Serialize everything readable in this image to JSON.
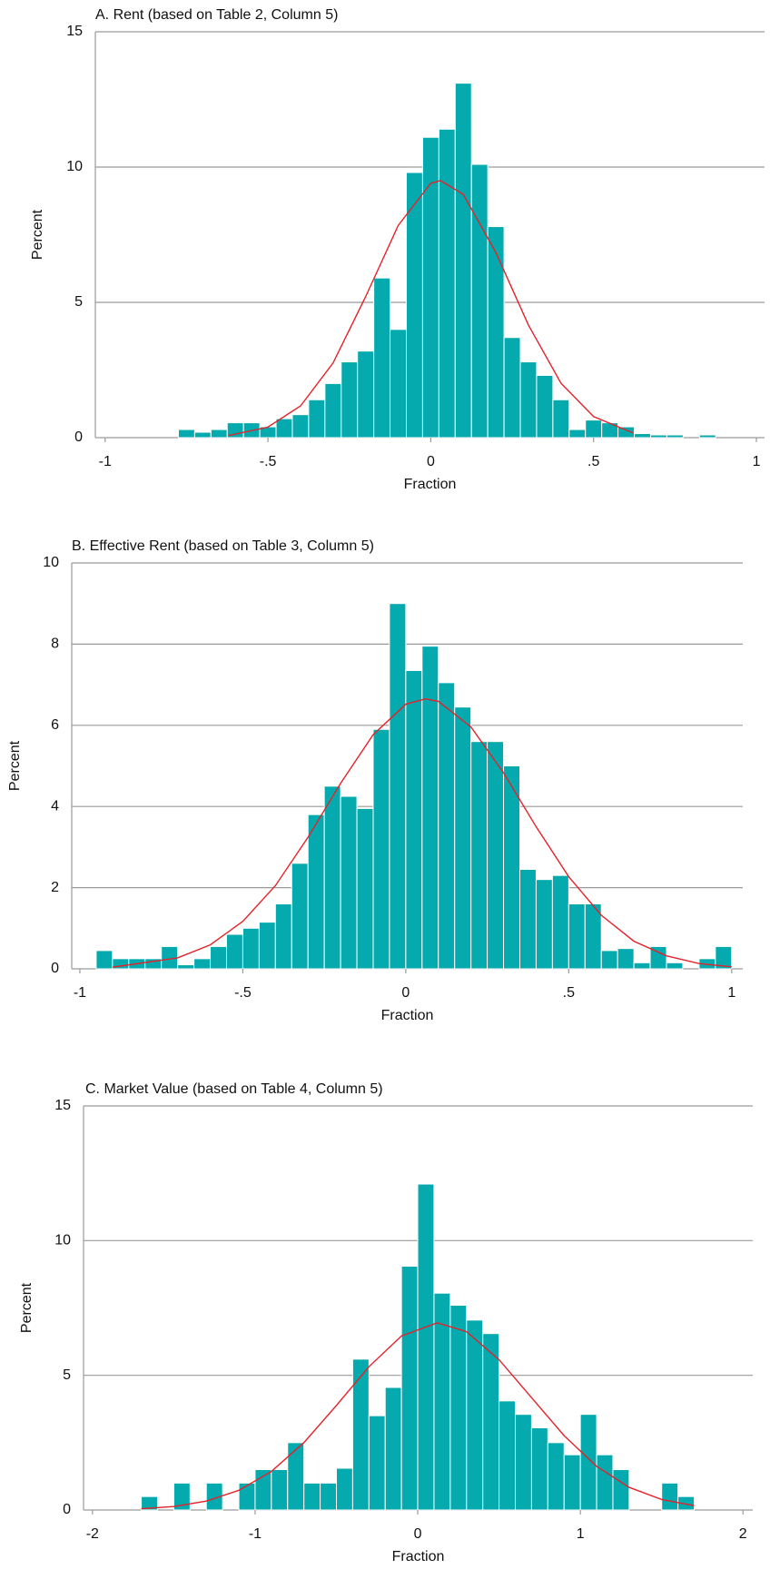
{
  "chart_data": [
    {
      "type": "histogram",
      "title": "A. Rent (based on Table 2, Column 5)",
      "x_label": "Fraction",
      "y_label": "Percent",
      "bins": [
        -0.775,
        -0.725,
        -0.675,
        -0.625,
        -0.575,
        -0.525,
        -0.475,
        -0.425,
        -0.375,
        -0.325,
        -0.275,
        -0.225,
        -0.175,
        -0.125,
        -0.075,
        -0.025,
        0.025,
        0.075,
        0.125,
        0.175,
        0.225,
        0.275,
        0.325,
        0.375,
        0.425,
        0.475,
        0.525,
        0.575,
        0.625,
        0.675,
        0.725,
        0.775,
        0.825,
        0.875
      ],
      "values": [
        0.3,
        0.2,
        0.3,
        0.55,
        0.55,
        0.4,
        0.7,
        0.85,
        1.4,
        2.0,
        2.8,
        3.2,
        5.9,
        4.0,
        9.8,
        11.1,
        11.4,
        13.1,
        10.1,
        7.8,
        3.7,
        2.8,
        2.3,
        1.4,
        0.3,
        0.65,
        0.55,
        0.4,
        0.15,
        0.1,
        0.1,
        0,
        0.1
      ],
      "color": "#05aaae",
      "curve": {
        "color": "#e3232a",
        "x": [
          -0.62,
          -0.5,
          -0.4,
          -0.3,
          -0.2,
          -0.1,
          0,
          0.03,
          0.1,
          0.2,
          0.3,
          0.4,
          0.5,
          0.62
        ],
        "y": [
          0.08,
          0.39,
          1.17,
          2.76,
          5.21,
          7.84,
          9.4,
          9.5,
          8.99,
          6.84,
          4.16,
          2.01,
          0.78,
          0.18
        ]
      },
      "xlim": [
        -1.03,
        1.025
      ],
      "xticks": [
        -1,
        {
          "value": -0.5,
          "label": "-.5"
        },
        0,
        {
          "value": 0.5,
          "label": ".5"
        },
        1
      ],
      "ylim": [
        0,
        15
      ],
      "yticks": [
        0,
        5,
        10,
        15
      ],
      "grid": true
    },
    {
      "type": "histogram",
      "title": "B. Effective Rent (based on Table 3, Column 5)",
      "x_label": "Fraction",
      "y_label": "Percent",
      "bins": [
        -0.95,
        -0.9,
        -0.85,
        -0.8,
        -0.75,
        -0.7,
        -0.65,
        -0.6,
        -0.55,
        -0.5,
        -0.45,
        -0.4,
        -0.35,
        -0.3,
        -0.25,
        -0.2,
        -0.15,
        -0.1,
        -0.05,
        0,
        0.05,
        0.1,
        0.15,
        0.2,
        0.25,
        0.3,
        0.35,
        0.4,
        0.45,
        0.5,
        0.55,
        0.6,
        0.65,
        0.7,
        0.75,
        0.8,
        0.85,
        0.9,
        0.95,
        1.0
      ],
      "values": [
        0.45,
        0.25,
        0.25,
        0.25,
        0.55,
        0.1,
        0.25,
        0.55,
        0.85,
        1.0,
        1.15,
        1.6,
        2.6,
        3.8,
        4.5,
        4.25,
        3.95,
        5.9,
        9.0,
        7.35,
        7.95,
        7.05,
        6.45,
        5.6,
        5.6,
        5.0,
        2.45,
        2.2,
        2.3,
        1.6,
        1.6,
        0.45,
        0.5,
        0.15,
        0.55,
        0.15,
        0,
        0.25,
        0.55
      ],
      "color": "#05aaae",
      "curve": {
        "color": "#e3232a",
        "x": [
          -0.9,
          -0.7,
          -0.6,
          -0.5,
          -0.4,
          -0.3,
          -0.2,
          -0.1,
          0,
          0.06,
          0.1,
          0.2,
          0.3,
          0.4,
          0.5,
          0.6,
          0.7,
          0.8,
          0.9,
          1.0
        ],
        "y": [
          0.04,
          0.27,
          0.59,
          1.17,
          2.05,
          3.24,
          4.57,
          5.77,
          6.52,
          6.65,
          6.59,
          5.96,
          4.83,
          3.5,
          2.27,
          1.32,
          0.68,
          0.32,
          0.13,
          0.05
        ]
      },
      "xlim": [
        -1.025,
        1.034
      ],
      "xticks": [
        -1,
        {
          "value": -0.5,
          "label": "-.5"
        },
        0,
        {
          "value": 0.5,
          "label": ".5"
        },
        1
      ],
      "ylim": [
        0,
        10
      ],
      "yticks": [
        0,
        2,
        4,
        6,
        8,
        10
      ],
      "grid": true
    },
    {
      "type": "histogram",
      "title": "C. Market Value (based on Table 4, Column 5)",
      "x_label": "Fraction",
      "y_label": "Percent",
      "bins": [
        -1.7,
        -1.6,
        -1.5,
        -1.4,
        -1.3,
        -1.2,
        -1.1,
        -1.0,
        -0.9,
        -0.8,
        -0.7,
        -0.6,
        -0.5,
        -0.4,
        -0.3,
        -0.2,
        -0.1,
        0,
        0.1,
        0.2,
        0.3,
        0.4,
        0.5,
        0.6,
        0.7,
        0.8,
        0.9,
        1.0,
        1.1,
        1.2,
        1.3,
        1.4,
        1.5,
        1.6,
        1.7
      ],
      "values": [
        0.5,
        0,
        1,
        0,
        1,
        0,
        1,
        1.5,
        1.5,
        2.5,
        1,
        1,
        1.55,
        5.6,
        3.5,
        4.55,
        9.05,
        12.1,
        8.05,
        7.6,
        7.05,
        6.55,
        4.05,
        3.55,
        3.05,
        2.5,
        2.05,
        3.55,
        2.05,
        1.5,
        0,
        0,
        1,
        0.5
      ],
      "color": "#05aaae",
      "curve": {
        "color": "#e3232a",
        "x": [
          -1.7,
          -1.5,
          -1.3,
          -1.1,
          -0.9,
          -0.7,
          -0.5,
          -0.3,
          -0.1,
          0.12,
          0.3,
          0.5,
          0.7,
          0.9,
          1.1,
          1.3,
          1.5,
          1.7
        ],
        "y": [
          0.05,
          0.13,
          0.33,
          0.73,
          1.43,
          2.5,
          3.88,
          5.32,
          6.46,
          6.95,
          6.62,
          5.58,
          4.17,
          2.76,
          1.62,
          0.84,
          0.39,
          0.16
        ]
      },
      "xlim": [
        -2.055,
        2.06
      ],
      "xticks": [
        -2,
        -1,
        0,
        1,
        2
      ],
      "ylim": [
        0,
        15
      ],
      "yticks": [
        0,
        5,
        10,
        15
      ],
      "grid": true
    }
  ]
}
